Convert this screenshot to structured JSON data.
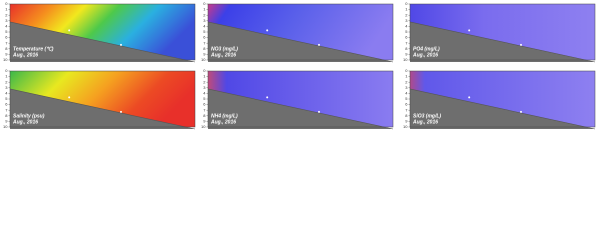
{
  "chart_data": [
    {
      "type": "contour",
      "title": "Temperature (℃)",
      "subtitle": "Aug., 2016",
      "ylim": [
        0,
        10
      ],
      "yticks": [
        0,
        1,
        2,
        3,
        4,
        5,
        6,
        7,
        8,
        9,
        10
      ]
    },
    {
      "type": "contour",
      "title": "NO3 (mg/L)",
      "subtitle": "Aug., 2016",
      "ylim": [
        0,
        10
      ],
      "yticks": [
        0,
        1,
        2,
        3,
        4,
        5,
        6,
        7,
        8,
        9,
        10
      ]
    },
    {
      "type": "contour",
      "title": "PO4 (mg/L)",
      "subtitle": "Aug., 2016",
      "ylim": [
        0,
        10
      ],
      "yticks": [
        0,
        1,
        2,
        3,
        4,
        5,
        6,
        7,
        8,
        9,
        10
      ]
    },
    {
      "type": "contour",
      "title": "Salinity (psu)",
      "subtitle": "Aug., 2016",
      "ylim": [
        0,
        10
      ],
      "yticks": [
        0,
        1,
        2,
        3,
        4,
        5,
        6,
        7,
        8,
        9,
        10
      ]
    },
    {
      "type": "contour",
      "title": "NH4 (mg/L)",
      "subtitle": "Aug., 2016",
      "ylim": [
        0,
        10
      ],
      "yticks": [
        0,
        1,
        2,
        3,
        4,
        5,
        6,
        7,
        8,
        9,
        10
      ]
    },
    {
      "type": "contour",
      "title": "SiO3 (mg/L)",
      "subtitle": "Aug., 2016",
      "ylim": [
        0,
        10
      ],
      "yticks": [
        0,
        1,
        2,
        3,
        4,
        5,
        6,
        7,
        8,
        9,
        10
      ]
    }
  ]
}
